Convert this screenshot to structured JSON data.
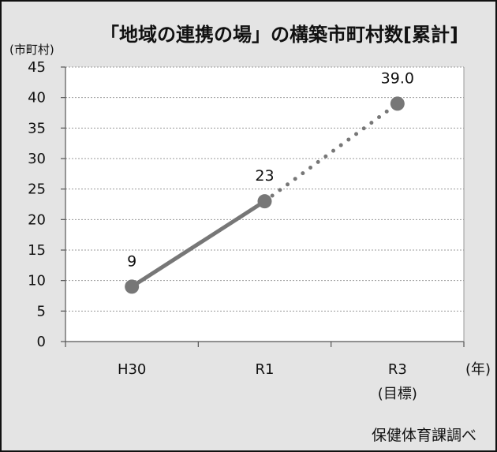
{
  "chart_data": {
    "type": "line",
    "title": "「地域の連携の場」の構築市町村数[累計]",
    "ylabel": "(市町村)",
    "xlabel": "(年)",
    "categories": [
      "H30",
      "R1",
      "R3"
    ],
    "category_notes": [
      "",
      "",
      "(目標)"
    ],
    "series": [
      {
        "values": [
          9,
          23,
          39.0
        ],
        "labels": [
          "9",
          "23",
          "39.0"
        ],
        "line_styles": [
          "solid",
          "dotted"
        ],
        "color": "#777777"
      }
    ],
    "ylim": [
      0,
      45
    ],
    "yticks": [
      0,
      5,
      10,
      15,
      20,
      25,
      30,
      35,
      40,
      45
    ],
    "grid": true,
    "legend": "none"
  },
  "source": "保健体育課調べ"
}
